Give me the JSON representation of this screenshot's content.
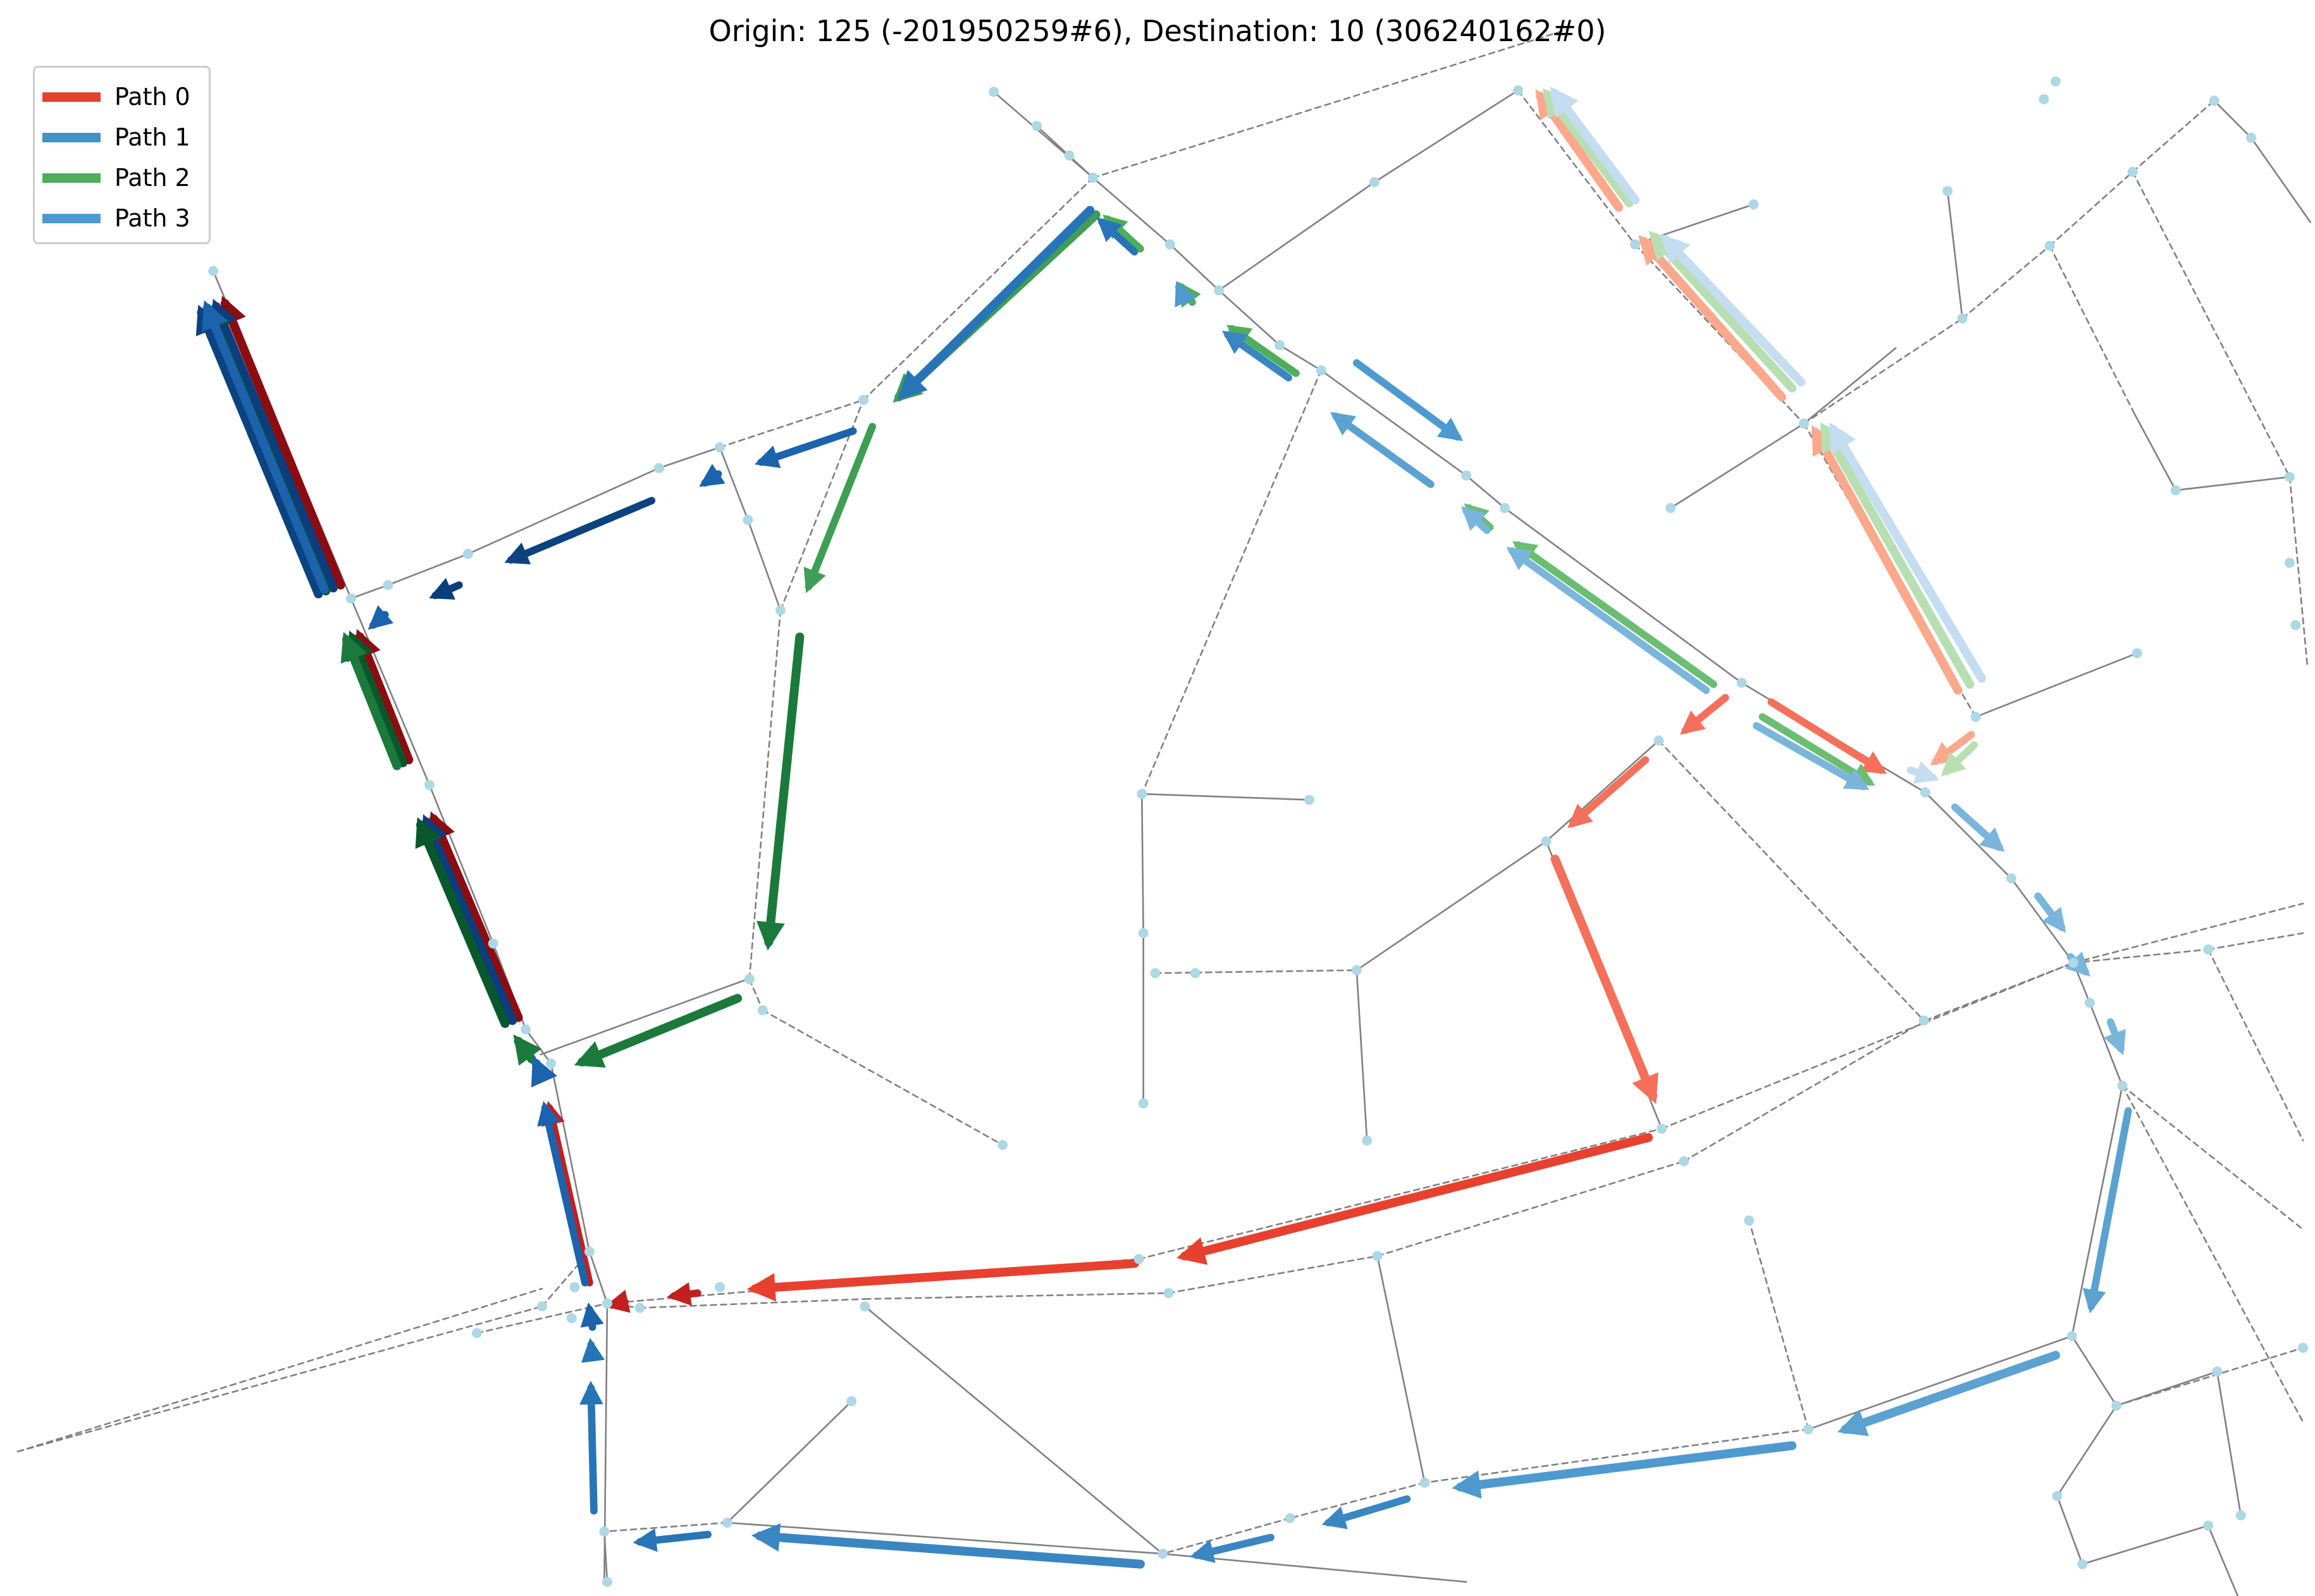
{
  "title": "Origin: 125 (-201950259#6), Destination: 10 (306240162#0)",
  "legend": {
    "items": [
      {
        "label": "Path 0",
        "color": "#e8402f"
      },
      {
        "label": "Path 1",
        "color": "#4292c6"
      },
      {
        "label": "Path 2",
        "color": "#4daf5b"
      },
      {
        "label": "Path 3",
        "color": "#4e9ad0"
      }
    ]
  },
  "colors": {
    "road_solid": "#808080",
    "road_dashed": "#808080",
    "node": "#add8e6",
    "path0": [
      "#8b0c11",
      "#c21f21",
      "#e8402f",
      "#f4705a",
      "#fca88c"
    ],
    "path1": [
      "#0b3e7c",
      "#1b63ad",
      "#3a86c3",
      "#5ba2d0",
      "#a7cde5"
    ],
    "path2": [
      "#08582c",
      "#1b7a3b",
      "#3e9e54",
      "#6bbd72",
      "#b8dfb3"
    ],
    "path3": [
      "#0c427f",
      "#2775b6",
      "#4e9ad0",
      "#7ab5dc",
      "#c4ddf0"
    ]
  }
}
